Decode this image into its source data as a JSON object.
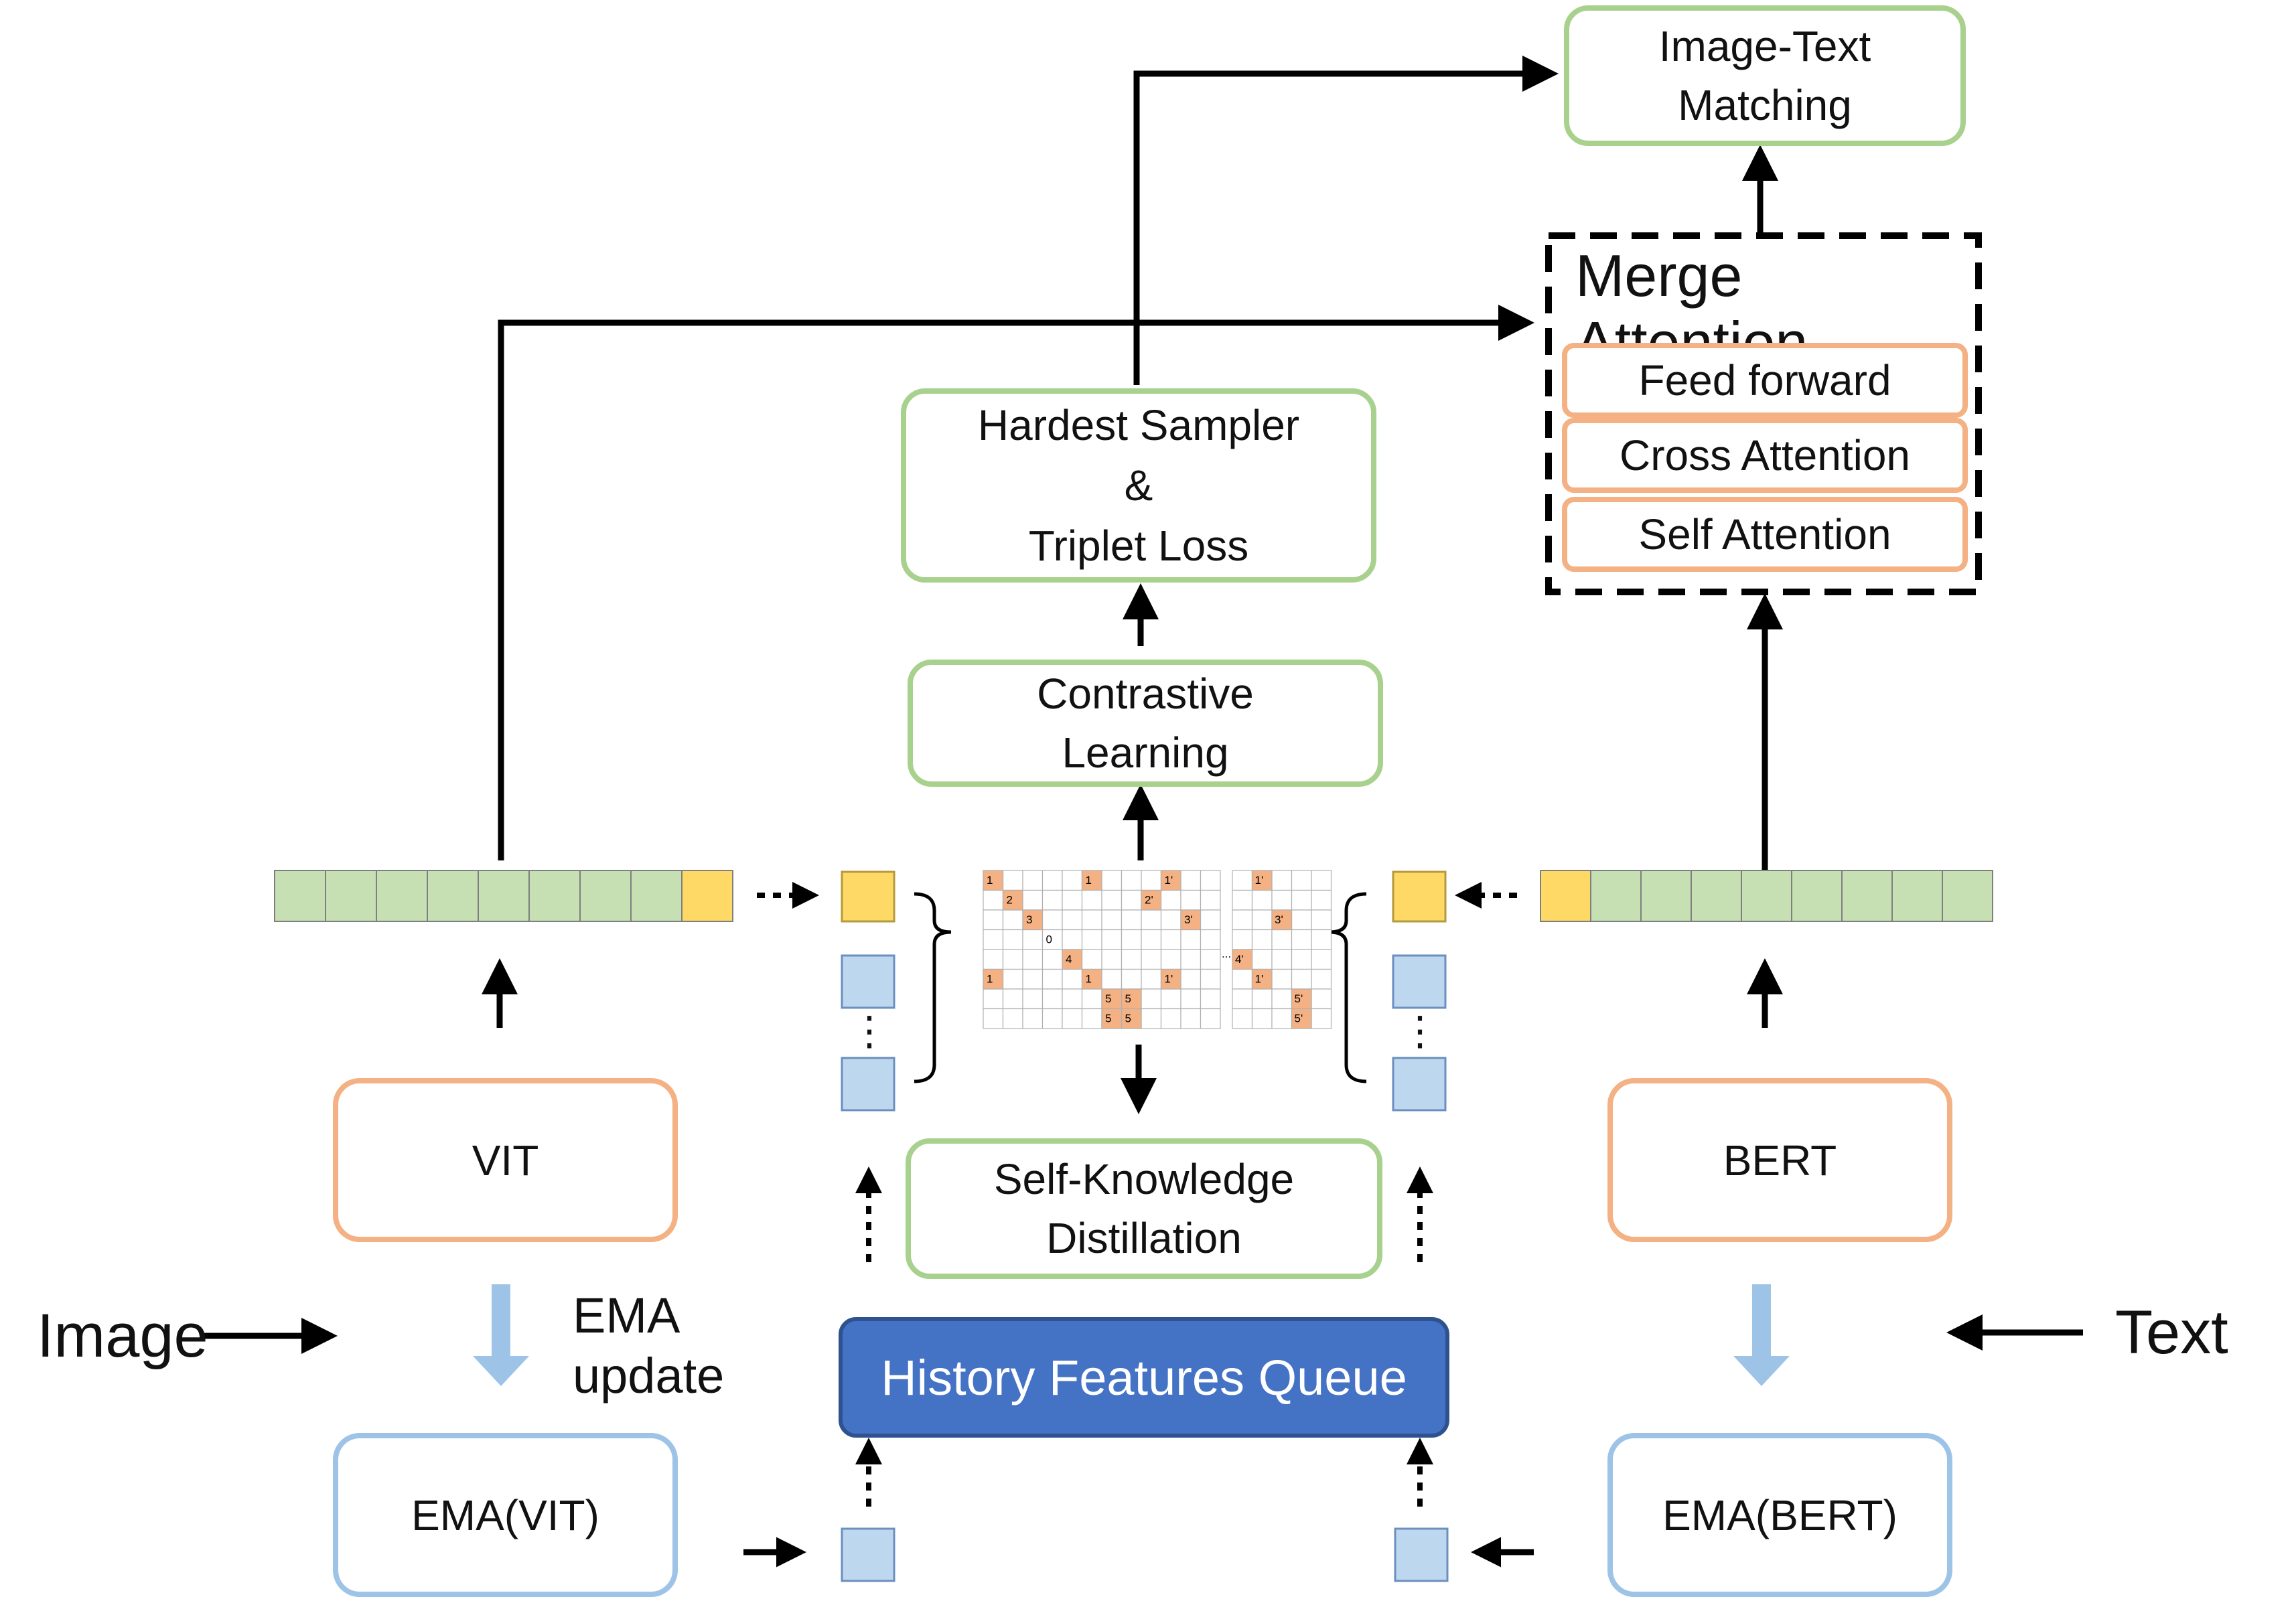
{
  "boxes": {
    "image_text_matching": "Image-Text\nMatching",
    "merge_attention": "Merge\nAttention",
    "feed_forward": "Feed forward",
    "cross_attention": "Cross Attention",
    "self_attention": "Self Attention",
    "hardest_sampler": "Hardest Sampler\n&\nTriplet Loss",
    "contrastive_learning": "Contrastive\nLearning",
    "self_knowledge_distillation": "Self-Knowledge\nDistillation",
    "history_features_queue": "History Features Queue",
    "vit": "VIT",
    "bert": "BERT",
    "ema_vit": "EMA(VIT)",
    "ema_bert": "EMA(BERT)"
  },
  "labels": {
    "image": "Image",
    "text": "Text",
    "ema_update": "EMA\nupdate",
    "left_ellipsis": "⋮",
    "right_ellipsis": "⋮"
  },
  "matrix": {
    "left_cells": [
      "1",
      "1",
      "1'",
      "2",
      "2'",
      "3",
      "3'",
      "0",
      "4",
      "1",
      "1",
      "1'",
      "5",
      "5",
      "5",
      "5"
    ],
    "right_cells": [
      "1'",
      "3'",
      "...",
      "4'",
      "1'",
      "5'",
      "5'"
    ]
  },
  "colors": {
    "green_border": "#a9d18e",
    "orange_border": "#f4b183",
    "blue_border": "#9dc3e6",
    "queue_fill": "#4472c4",
    "token_green": "#c6e0b4",
    "token_yellow": "#ffd966",
    "token_blue": "#bdd7ee",
    "matrix_cell_orange": "#f4b183"
  }
}
